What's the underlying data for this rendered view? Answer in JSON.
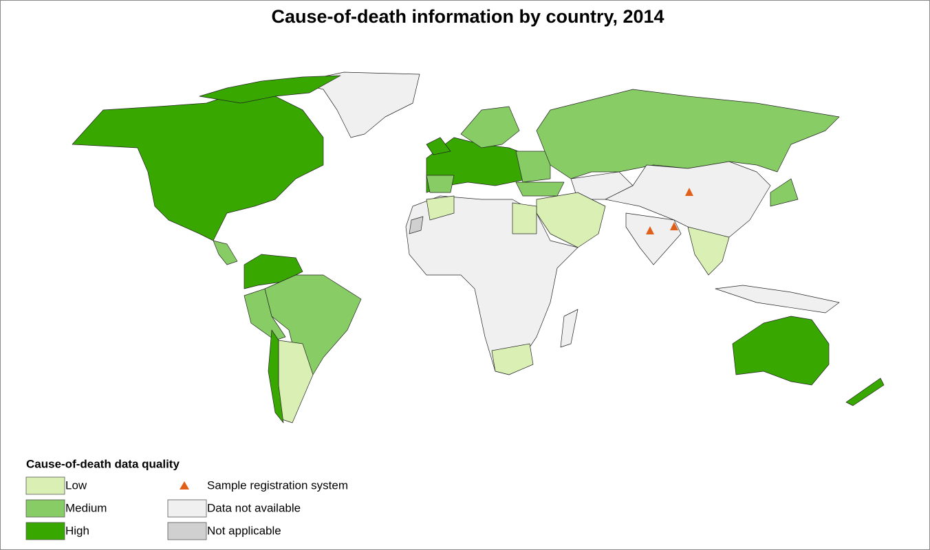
{
  "title": "Cause-of-death information by country, 2014",
  "legend": {
    "title": "Cause-of-death data quality",
    "classes": [
      {
        "label": "Low",
        "color": "#d9efb4"
      },
      {
        "label": "Medium",
        "color": "#88cc66"
      },
      {
        "label": "High",
        "color": "#38a800"
      },
      {
        "label": "Data not available",
        "color": "#f0f0f0"
      },
      {
        "label": "Not applicable",
        "color": "#d0d0d0"
      }
    ],
    "markers": [
      {
        "label": "Sample registration system",
        "color": "#e0601a"
      }
    ]
  }
}
